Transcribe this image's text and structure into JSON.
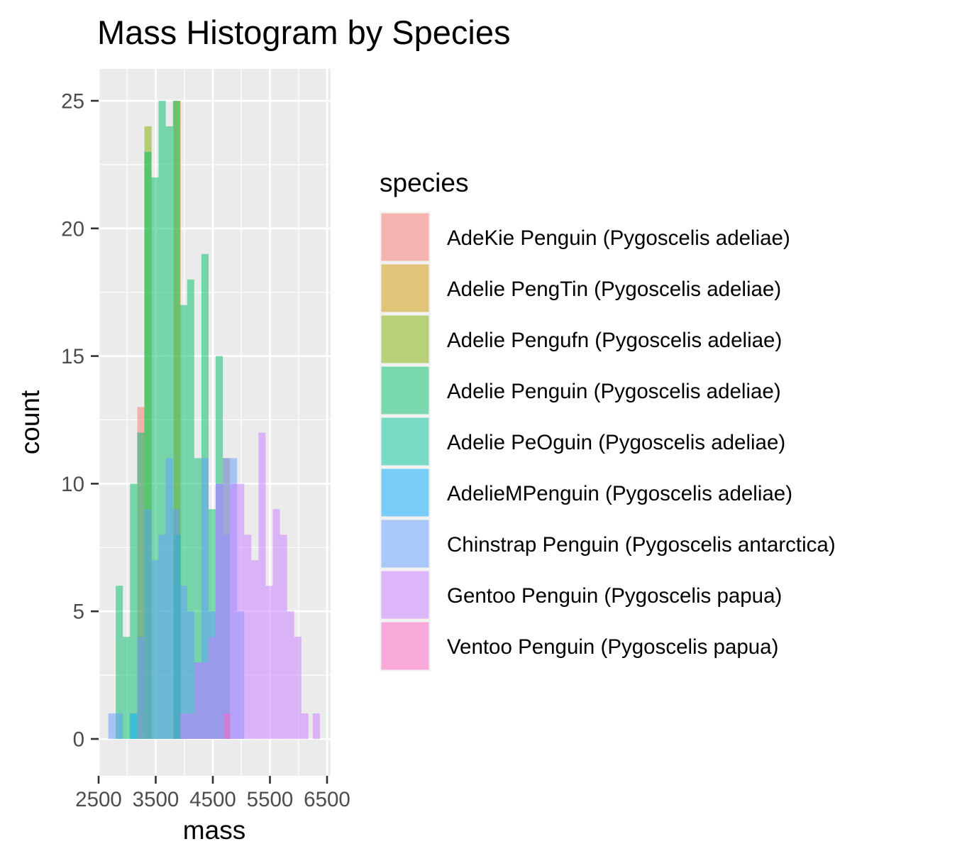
{
  "chart_data": {
    "type": "bar",
    "subtype": "overlaid histogram",
    "title": "Mass Histogram by Species",
    "xlabel": "mass",
    "ylabel": "count",
    "xlim": [
      2500,
      6500
    ],
    "ylim": [
      0,
      25
    ],
    "x_ticks": [
      2500,
      3500,
      4500,
      5500,
      6500
    ],
    "x_tick_labels": [
      "2500",
      "3500",
      "4500",
      "5500",
      "6500"
    ],
    "y_ticks": [
      0,
      5,
      10,
      15,
      20,
      25
    ],
    "y_tick_labels": [
      "0",
      "5",
      "10",
      "15",
      "20",
      "25"
    ],
    "grid": true,
    "background": "#ebebeb",
    "bar_opacity": 0.5,
    "legend": {
      "title": "species",
      "placement": "right"
    },
    "series": [
      {
        "name": "AdeKie Penguin (Pygoscelis adeliae)",
        "color": "#F8766D",
        "bins": [
          {
            "x0": 3178,
            "x1": 3302,
            "count": 13
          }
        ]
      },
      {
        "name": "Adelie PengTin (Pygoscelis adeliae)",
        "color": "#CD9600",
        "bins": [
          {
            "x0": 3812,
            "x1": 3938,
            "count": 25
          }
        ]
      },
      {
        "name": "Adelie Pengufn (Pygoscelis adeliae)",
        "color": "#7CAE00",
        "bins": [
          {
            "x0": 3302,
            "x1": 3428,
            "count": 24
          }
        ]
      },
      {
        "name": "Adelie Penguin (Pygoscelis adeliae)",
        "color": "#00BE67",
        "bins": [
          {
            "x0": 2800,
            "x1": 2925,
            "count": 6
          },
          {
            "x0": 2925,
            "x1": 3050,
            "count": 4
          },
          {
            "x0": 3050,
            "x1": 3175,
            "count": 10
          },
          {
            "x0": 3175,
            "x1": 3300,
            "count": 12
          },
          {
            "x0": 3300,
            "x1": 3425,
            "count": 23
          },
          {
            "x0": 3425,
            "x1": 3550,
            "count": 22
          },
          {
            "x0": 3550,
            "x1": 3675,
            "count": 25
          },
          {
            "x0": 3675,
            "x1": 3800,
            "count": 24
          },
          {
            "x0": 3800,
            "x1": 3925,
            "count": 25
          },
          {
            "x0": 3925,
            "x1": 4050,
            "count": 17
          },
          {
            "x0": 4050,
            "x1": 4175,
            "count": 18
          },
          {
            "x0": 4175,
            "x1": 4300,
            "count": 11
          },
          {
            "x0": 4300,
            "x1": 4425,
            "count": 19
          },
          {
            "x0": 4425,
            "x1": 4550,
            "count": 9
          },
          {
            "x0": 4550,
            "x1": 4675,
            "count": 15
          },
          {
            "x0": 4675,
            "x1": 4800,
            "count": 11
          }
        ]
      },
      {
        "name": "Adelie PeOguin (Pygoscelis adeliae)",
        "color": "#00C19A",
        "bins": [
          {
            "x0": 3812,
            "x1": 3938,
            "count": 8
          }
        ]
      },
      {
        "name": "AdelieMPenguin (Pygoscelis adeliae)",
        "color": "#00A9FF",
        "bins": [
          {
            "x0": 3045,
            "x1": 3175,
            "count": 1
          }
        ]
      },
      {
        "name": "Chinstrap Penguin (Pygoscelis antarctica)",
        "color": "#619CFF",
        "bins": [
          {
            "x0": 2670,
            "x1": 2925,
            "count": 1
          },
          {
            "x0": 3175,
            "x1": 3300,
            "count": 4
          },
          {
            "x0": 3300,
            "x1": 3425,
            "count": 9
          },
          {
            "x0": 3425,
            "x1": 3550,
            "count": 7
          },
          {
            "x0": 3550,
            "x1": 3675,
            "count": 8
          },
          {
            "x0": 3675,
            "x1": 3800,
            "count": 11
          },
          {
            "x0": 3800,
            "x1": 3925,
            "count": 9
          },
          {
            "x0": 3925,
            "x1": 4050,
            "count": 6
          },
          {
            "x0": 4050,
            "x1": 4175,
            "count": 5
          },
          {
            "x0": 4175,
            "x1": 4300,
            "count": 3
          },
          {
            "x0": 4300,
            "x1": 4425,
            "count": 11
          },
          {
            "x0": 4425,
            "x1": 4550,
            "count": 5
          },
          {
            "x0": 4550,
            "x1": 4675,
            "count": 10
          },
          {
            "x0": 4675,
            "x1": 4800,
            "count": 8
          },
          {
            "x0": 4800,
            "x1": 4925,
            "count": 11
          },
          {
            "x0": 4925,
            "x1": 5050,
            "count": 5
          }
        ]
      },
      {
        "name": "Gentoo Penguin (Pygoscelis papua)",
        "color": "#C77CFF",
        "bins": [
          {
            "x0": 3925,
            "x1": 4175,
            "count": 1
          },
          {
            "x0": 4175,
            "x1": 4425,
            "count": 3
          },
          {
            "x0": 4425,
            "x1": 4550,
            "count": 4
          },
          {
            "x0": 4550,
            "x1": 4675,
            "count": 10
          },
          {
            "x0": 4675,
            "x1": 4800,
            "count": 11
          },
          {
            "x0": 4800,
            "x1": 4925,
            "count": 10
          },
          {
            "x0": 4925,
            "x1": 5050,
            "count": 10
          },
          {
            "x0": 5050,
            "x1": 5175,
            "count": 8
          },
          {
            "x0": 5175,
            "x1": 5300,
            "count": 7
          },
          {
            "x0": 5300,
            "x1": 5425,
            "count": 12
          },
          {
            "x0": 5425,
            "x1": 5550,
            "count": 6
          },
          {
            "x0": 5550,
            "x1": 5675,
            "count": 9
          },
          {
            "x0": 5675,
            "x1": 5800,
            "count": 8
          },
          {
            "x0": 5800,
            "x1": 5925,
            "count": 5
          },
          {
            "x0": 5925,
            "x1": 6050,
            "count": 4
          },
          {
            "x0": 6050,
            "x1": 6175,
            "count": 1
          },
          {
            "x0": 6250,
            "x1": 6375,
            "count": 1
          }
        ]
      },
      {
        "name": "Ventoo Penguin (Pygoscelis papua)",
        "color": "#FF61C3",
        "bins": [
          {
            "x0": 4695,
            "x1": 4805,
            "count": 1
          }
        ]
      }
    ]
  }
}
